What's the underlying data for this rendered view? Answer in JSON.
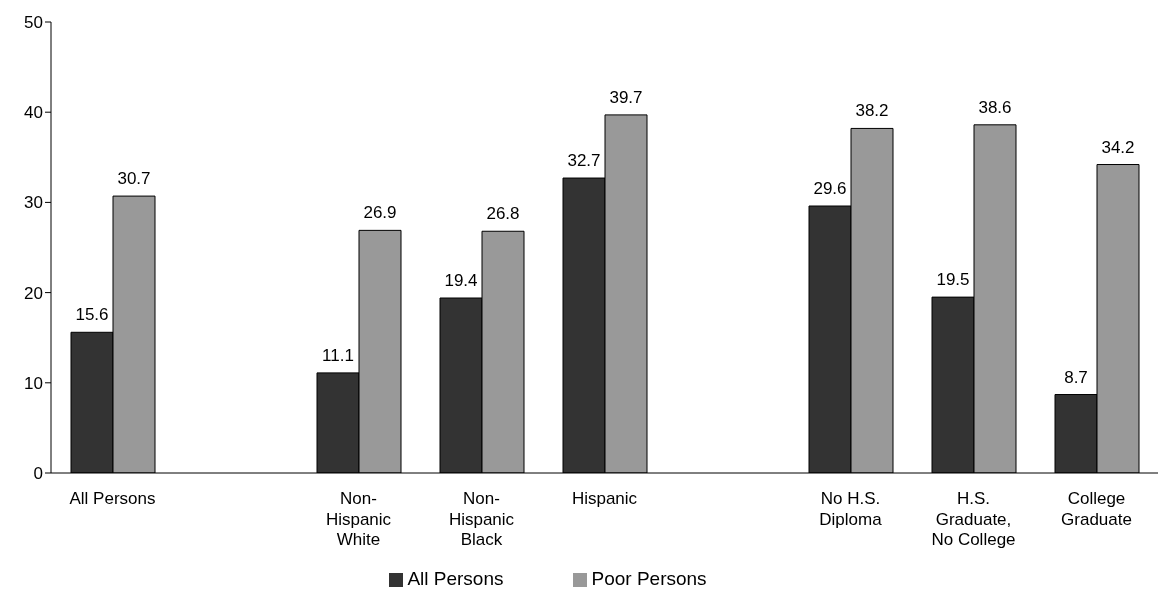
{
  "chart_data": {
    "type": "bar",
    "categories": [
      "All Persons",
      null,
      "Non-Hispanic White",
      "Non-Hispanic Black",
      "Hispanic",
      null,
      "No H.S. Diploma",
      "H.S. Graduate, No College",
      "College Graduate"
    ],
    "series": [
      {
        "name": "All Persons",
        "color": "#333333",
        "values": [
          15.6,
          null,
          11.1,
          19.4,
          32.7,
          null,
          29.6,
          19.5,
          8.7
        ]
      },
      {
        "name": "Poor Persons",
        "color": "#999999",
        "values": [
          30.7,
          null,
          26.9,
          26.8,
          39.7,
          null,
          38.2,
          38.6,
          34.2
        ]
      }
    ],
    "ylim": [
      0,
      50
    ],
    "yticks": [
      0,
      10,
      20,
      30,
      40,
      50
    ],
    "grid": false,
    "legend": "bottom",
    "data_labels": true
  }
}
